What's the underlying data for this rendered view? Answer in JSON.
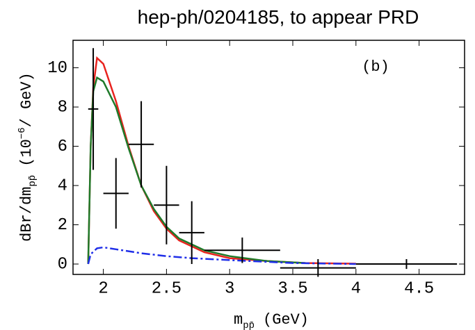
{
  "chart_data": {
    "type": "line",
    "title": "hep-ph/0204185, to appear PRD",
    "annotation": "(b)",
    "x_label": {
      "main": "m",
      "sub": "pp̄",
      "unit": "(GeV)"
    },
    "y_label": {
      "main": "dBr/dm",
      "sub": "pp̄",
      "pre": "(10",
      "sup": "−6",
      "unit": "/ GeV)"
    },
    "xlim": [
      1.76,
      4.86
    ],
    "ylim": [
      -0.53,
      11.4
    ],
    "xticks": [
      2,
      2.5,
      3,
      3.5,
      4,
      4.5
    ],
    "yticks": [
      0,
      2,
      4,
      6,
      8,
      10
    ],
    "series": [
      {
        "color": "#e8231e",
        "dash": "solid",
        "x": [
          1.88,
          1.9,
          1.92,
          1.95,
          2.0,
          2.1,
          2.2,
          2.3,
          2.4,
          2.5,
          2.6,
          2.8,
          3.0,
          3.3,
          3.6,
          4.0
        ],
        "values": [
          0,
          6,
          9,
          10.5,
          10.2,
          8.3,
          6.0,
          4.0,
          2.7,
          1.8,
          1.2,
          0.6,
          0.3,
          0.15,
          0.05,
          0.02
        ]
      },
      {
        "color": "#1f7a2a",
        "dash": "solid",
        "x": [
          1.88,
          1.9,
          1.92,
          1.95,
          2.0,
          2.1,
          2.2,
          2.3,
          2.4,
          2.5,
          2.6,
          2.8,
          3.0,
          3.3,
          3.6
        ],
        "values": [
          0,
          6,
          8.8,
          9.5,
          9.3,
          8.0,
          5.9,
          4.0,
          2.8,
          1.9,
          1.3,
          0.7,
          0.4,
          0.15,
          0.05
        ]
      },
      {
        "color": "#1f2ee8",
        "dash": "dashdot",
        "x": [
          1.88,
          1.9,
          1.95,
          2.0,
          2.1,
          2.3,
          2.5,
          2.7,
          3.0,
          3.5,
          4.0
        ],
        "values": [
          0.0,
          0.5,
          0.8,
          0.85,
          0.75,
          0.55,
          0.4,
          0.3,
          0.2,
          0.05,
          0.0
        ]
      }
    ],
    "points": {
      "color": "#000000",
      "x": [
        1.92,
        2.1,
        2.3,
        2.5,
        2.7,
        3.1,
        3.7,
        4.4
      ],
      "xerr": [
        0.04,
        0.1,
        0.1,
        0.1,
        0.1,
        0.3,
        0.3,
        0.4
      ],
      "values": [
        7.9,
        3.6,
        6.1,
        3.0,
        1.6,
        0.7,
        -0.2,
        0.0
      ],
      "yerr": [
        3.1,
        1.8,
        2.2,
        2.0,
        1.6,
        0.65,
        0.45,
        0.25
      ]
    }
  }
}
